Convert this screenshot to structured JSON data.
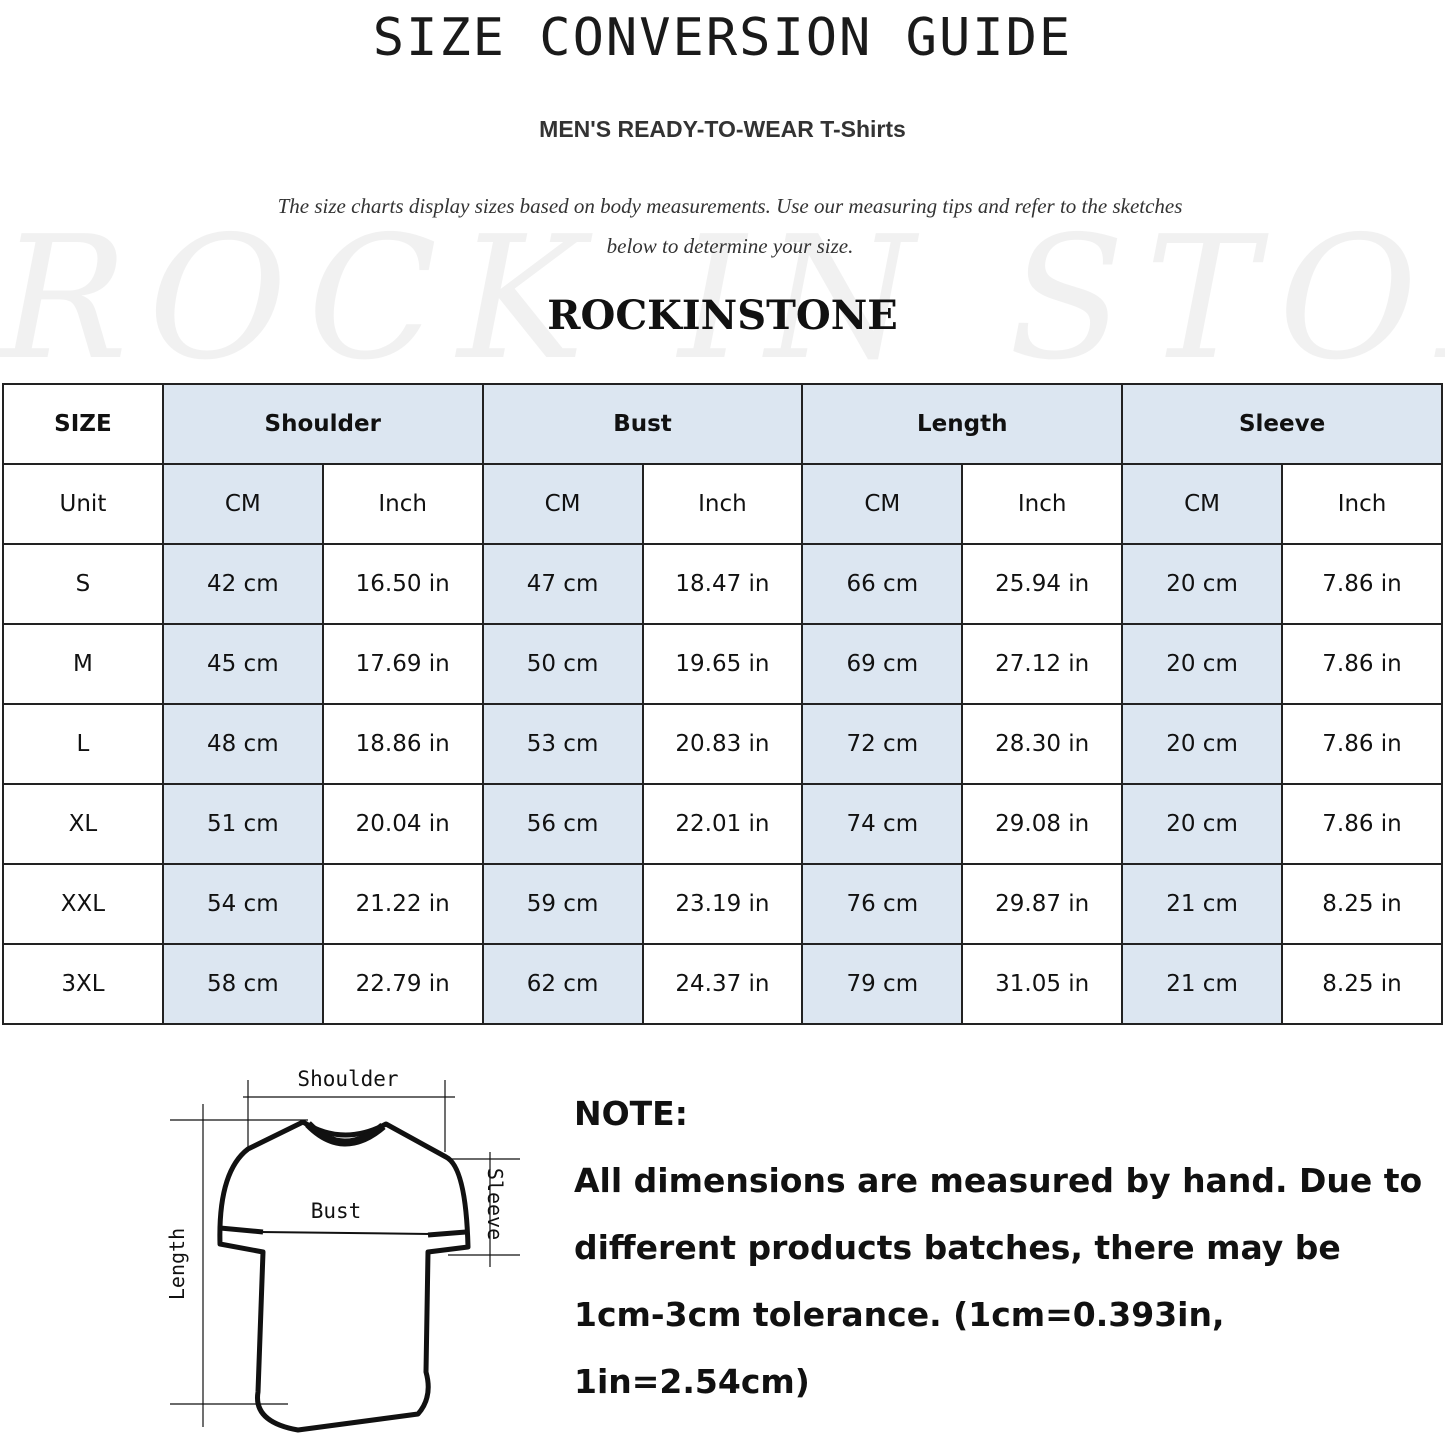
{
  "title": "SIZE CONVERSION GUIDE",
  "subtitle": "MEN'S READY-TO-WEAR T-Shirts",
  "description_line1": "The size charts display sizes based on body measurements. Use our measuring tips and refer to the sketches",
  "description_line2": "below to determine your size.",
  "watermark": "ROCK IN STONE",
  "brand": "ROCKINSTONE",
  "colors": {
    "shaded_cell": "#dce6f1",
    "border": "#222222"
  },
  "table": {
    "size_header": "SIZE",
    "groups": [
      "Shoulder",
      "Bust",
      "Length",
      "Sleeve"
    ],
    "unit_label": "Unit",
    "units": [
      "CM",
      "Inch",
      "CM",
      "Inch",
      "CM",
      "Inch",
      "CM",
      "Inch"
    ],
    "rows": [
      {
        "size": "S",
        "values": [
          "42 cm",
          "16.50 in",
          "47 cm",
          "18.47  in",
          "66 cm",
          "25.94  in",
          "20 cm",
          "7.86  in"
        ]
      },
      {
        "size": "M",
        "values": [
          "45 cm",
          "17.69  in",
          "50 cm",
          "19.65  in",
          "69 cm",
          "27.12  in",
          "20 cm",
          "7.86  in"
        ]
      },
      {
        "size": "L",
        "values": [
          "48 cm",
          "18.86  in",
          "53 cm",
          "20.83  in",
          "72 cm",
          "28.30  in",
          "20 cm",
          "7.86  in"
        ]
      },
      {
        "size": "XL",
        "values": [
          "51 cm",
          "20.04  in",
          "56 cm",
          "22.01  in",
          "74 cm",
          "29.08  in",
          "20 cm",
          "7.86  in"
        ]
      },
      {
        "size": "XXL",
        "values": [
          "54 cm",
          "21.22  in",
          "59 cm",
          "23.19  in",
          "76 cm",
          "29.87  in",
          "21 cm",
          "8.25  in"
        ]
      },
      {
        "size": "3XL",
        "values": [
          "58 cm",
          "22.79  in",
          "62 cm",
          "24.37  in",
          "79 cm",
          "31.05  in",
          "21 cm",
          "8.25  in"
        ]
      }
    ]
  },
  "sketch": {
    "shoulder": "Shoulder",
    "bust": "Bust",
    "sleeve": "Sleeve",
    "length": "Length"
  },
  "note": {
    "heading": "NOTE:",
    "line1": "All dimensions are measured by hand. Due to",
    "line2": "different products batches, there may be",
    "line3": "1cm-3cm tolerance. (1cm=0.393in, 1in=2.54cm)"
  }
}
